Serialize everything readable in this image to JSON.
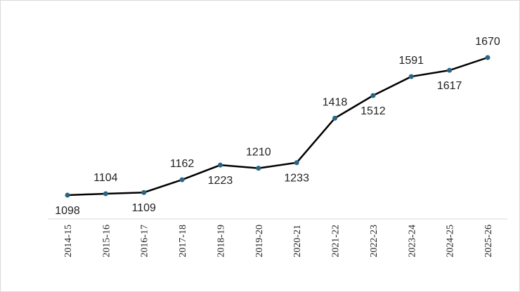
{
  "chart_data": {
    "type": "line",
    "categories": [
      "2014-15",
      "2015-16",
      "2016-17",
      "2017-18",
      "2018-19",
      "2019-20",
      "2020-21",
      "2021-22",
      "2022-23",
      "2023-24",
      "2024-25",
      "2025-26"
    ],
    "values": [
      1098,
      1104,
      1109,
      1162,
      1223,
      1210,
      1233,
      1418,
      1512,
      1591,
      1617,
      1670
    ],
    "color": "#000000",
    "marker_color": "#2a6585",
    "grid": false
  }
}
